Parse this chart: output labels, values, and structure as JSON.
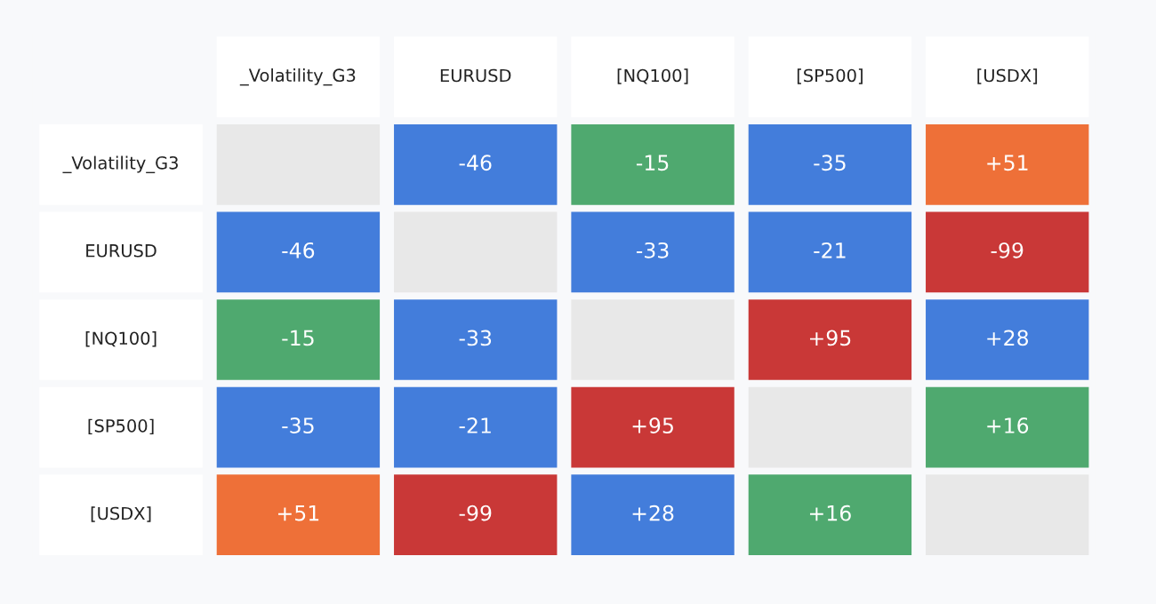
{
  "chart_data": {
    "type": "heatmap",
    "categories": [
      "_Volatility_G3",
      "EURUSD",
      "[NQ100]",
      "[SP500]",
      "[USDX]"
    ],
    "y_categories": [
      "_Volatility_G3",
      "EURUSD",
      "[NQ100]",
      "[SP500]",
      "[USDX]"
    ],
    "cells": [
      [
        null,
        -46,
        -15,
        -35,
        51
      ],
      [
        -46,
        null,
        -33,
        -21,
        -99
      ],
      [
        -15,
        -33,
        null,
        95,
        28
      ],
      [
        -35,
        -21,
        95,
        null,
        16
      ],
      [
        51,
        -99,
        28,
        16,
        null
      ]
    ],
    "cell_labels": [
      [
        null,
        "-46",
        "-15",
        "-35",
        "+51"
      ],
      [
        "-46",
        null,
        "-33",
        "-21",
        "-99"
      ],
      [
        "-15",
        "-33",
        null,
        "+95",
        "+28"
      ],
      [
        "-35",
        "-21",
        "+95",
        null,
        "+16"
      ],
      [
        "+51",
        "-99",
        "+28",
        "+16",
        null
      ]
    ],
    "colors": [
      [
        null,
        "#437ddb",
        "#4fa96f",
        "#437ddb",
        "#ee7038"
      ],
      [
        "#437ddb",
        null,
        "#437ddb",
        "#437ddb",
        "#c93837"
      ],
      [
        "#4fa96f",
        "#437ddb",
        null,
        "#c93837",
        "#437ddb"
      ],
      [
        "#437ddb",
        "#437ddb",
        "#c93837",
        null,
        "#4fa96f"
      ],
      [
        "#ee7038",
        "#c93837",
        "#437ddb",
        "#4fa96f",
        null
      ]
    ]
  }
}
